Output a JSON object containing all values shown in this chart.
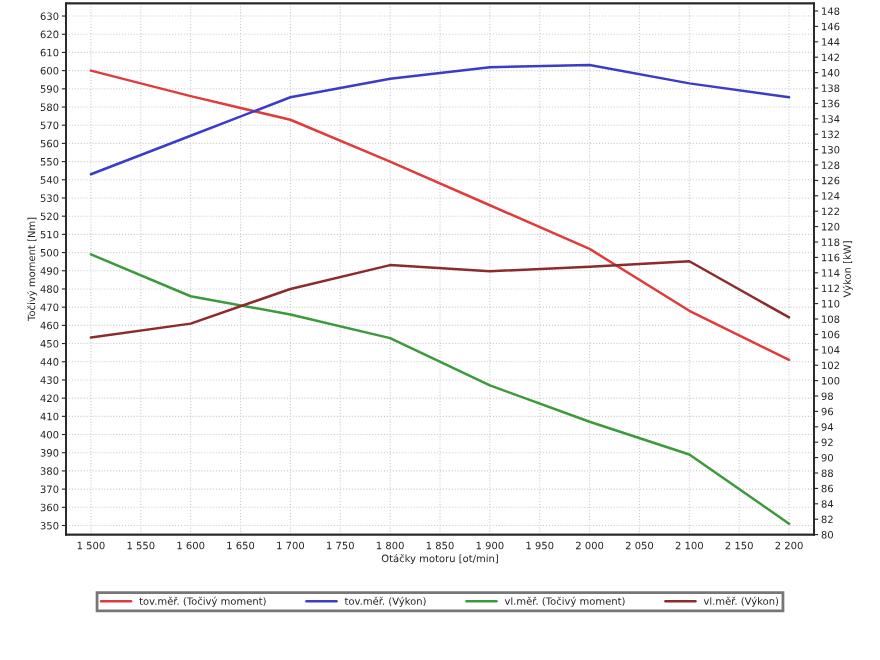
{
  "chart_data": {
    "type": "line",
    "xlabel": "Otáčky motoru [ot/min]",
    "ylabel": "Točivý moment [Nm]",
    "y2label": "Výkon [kW]",
    "x": [
      1500,
      1600,
      1700,
      1800,
      1900,
      2000,
      2100,
      2200
    ],
    "series": [
      {
        "name": "tov.měř. (Točivý moment)",
        "color": "#e03c3c",
        "values": [
          600,
          586,
          573,
          550,
          526,
          502,
          468,
          441
        ]
      },
      {
        "name": "tov.měř. (Výkon)",
        "color": "#3c3cc8",
        "axis": "y2",
        "values": [
          126.8,
          131.8,
          136.8,
          139.2,
          140.7,
          141,
          138.6,
          136.8
        ]
      },
      {
        "name": "vl.měř. (Točivý moment)",
        "color": "#3c9a3c",
        "values": [
          499,
          476,
          466,
          453,
          427,
          407,
          389,
          351
        ]
      },
      {
        "name": "vl.měř. (Výkon)",
        "color": "#8b2b2b",
        "axis": "y2",
        "values": [
          105.6,
          107.4,
          111.9,
          115,
          114.2,
          114.8,
          115.5,
          108.2
        ]
      }
    ],
    "xlim": [
      1475,
      2225
    ],
    "xticks": [
      {
        "value": 1500,
        "label": "1 500"
      },
      {
        "value": 1550,
        "label": "1 550"
      },
      {
        "value": 1600,
        "label": "1 600"
      },
      {
        "value": 1650,
        "label": "1 650"
      },
      {
        "value": 1700,
        "label": "1 700"
      },
      {
        "value": 1750,
        "label": "1 750"
      },
      {
        "value": 1800,
        "label": "1 800"
      },
      {
        "value": 1850,
        "label": "1 850"
      },
      {
        "value": 1900,
        "label": "1 900"
      },
      {
        "value": 1950,
        "label": "1 950"
      },
      {
        "value": 2000,
        "label": "2 000"
      },
      {
        "value": 2050,
        "label": "2 050"
      },
      {
        "value": 2100,
        "label": "2 100"
      },
      {
        "value": 2150,
        "label": "2 150"
      },
      {
        "value": 2200,
        "label": "2 200"
      }
    ],
    "ylim": [
      345,
      637
    ],
    "yticks": [
      350,
      360,
      370,
      380,
      390,
      400,
      410,
      420,
      430,
      440,
      450,
      460,
      470,
      480,
      490,
      500,
      510,
      520,
      530,
      540,
      550,
      560,
      570,
      580,
      590,
      600,
      610,
      620,
      630
    ],
    "y2lim": [
      80,
      149
    ],
    "y2ticks": [
      80,
      82,
      84,
      86,
      88,
      90,
      92,
      94,
      96,
      98,
      100,
      102,
      104,
      106,
      108,
      110,
      112,
      114,
      116,
      118,
      120,
      122,
      124,
      126,
      128,
      130,
      132,
      134,
      136,
      138,
      140,
      142,
      144,
      146,
      148
    ],
    "grid": true,
    "legend": "bottom",
    "marker": "none",
    "line_style": "solid"
  }
}
